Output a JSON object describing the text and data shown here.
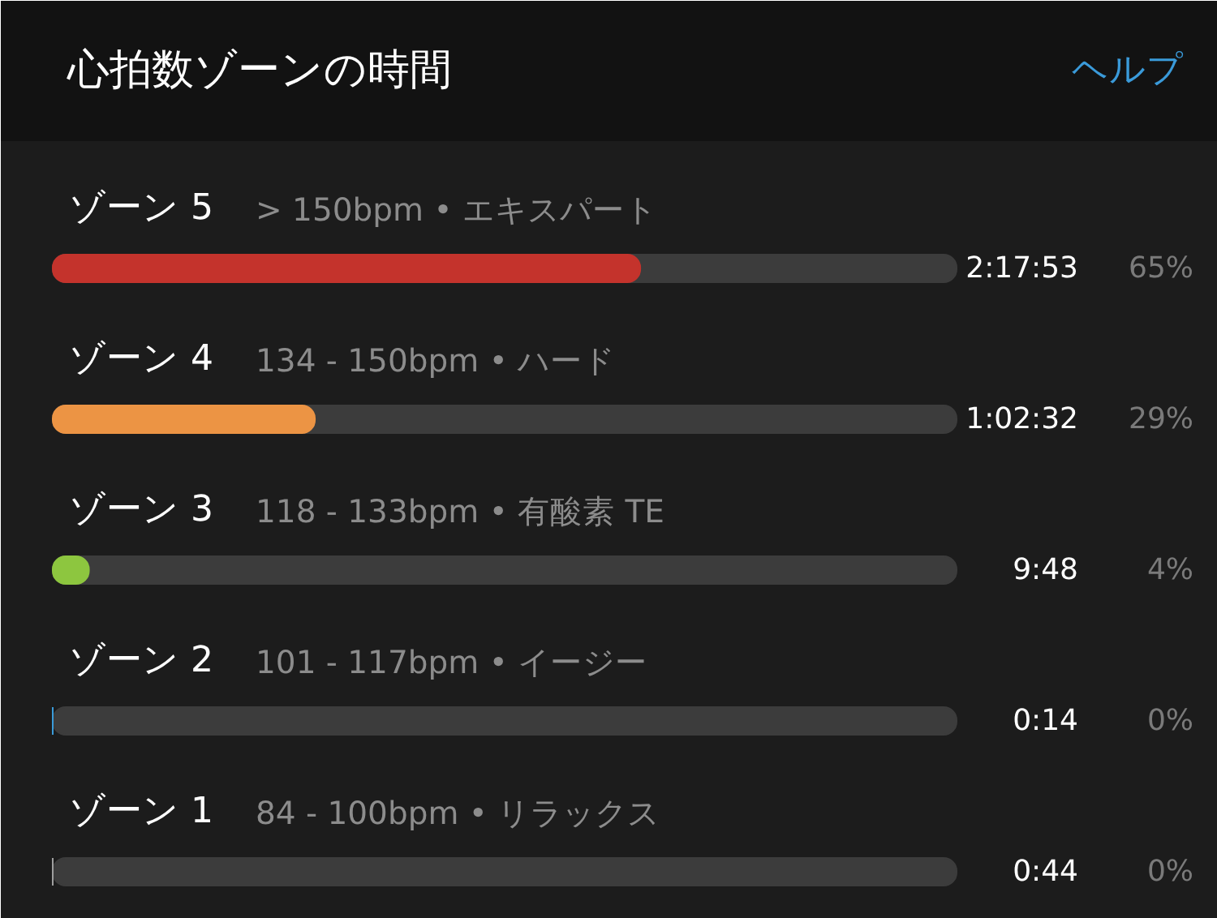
{
  "chart_data": {
    "type": "bar",
    "orientation": "horizontal",
    "title": "心拍数ゾーンの時間",
    "categories": [
      "ゾーン 5",
      "ゾーン 4",
      "ゾーン 3",
      "ゾーン 2",
      "ゾーン 1"
    ],
    "values": [
      65,
      29,
      4,
      0,
      0
    ],
    "value_labels": [
      "65%",
      "29%",
      "4%",
      "0%",
      "0%"
    ],
    "colors": [
      "#c4332c",
      "#ec9444",
      "#8dc63f",
      "#3a9bd9",
      "#9e9e9e"
    ],
    "xlim": [
      0,
      100
    ],
    "tick_labels": false,
    "grid": false,
    "annotations": [
      "ヘルプ",
      "> 150bpm • エキスパート",
      "134 - 150bpm • ハード",
      "118 - 133bpm • 有酸素 TE",
      "101 - 117bpm • イージー",
      "84 - 100bpm • リラックス",
      "2:17:53",
      "1:02:32",
      "9:48",
      "0:14",
      "0:44"
    ]
  }
}
